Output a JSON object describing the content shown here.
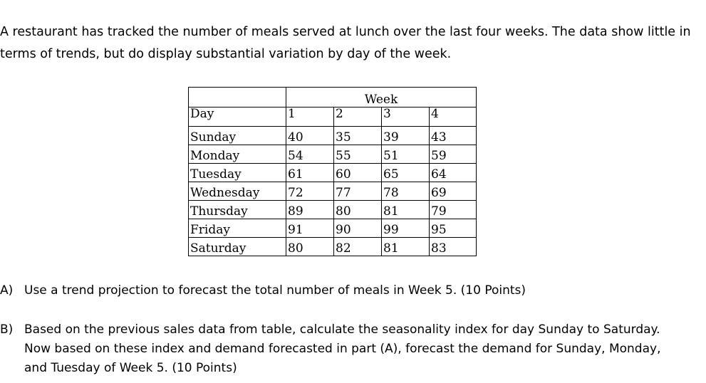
{
  "intro": "A restaurant has tracked the number of meals served at lunch over the last four weeks. The data show little in terms of trends, but do display substantial variation by day of the week.",
  "table": {
    "week_header": "Week",
    "day_header": "Day",
    "week_numbers": [
      "1",
      "2",
      "3",
      "4"
    ],
    "rows": [
      {
        "day": "Sunday",
        "values": [
          "40",
          "35",
          "39",
          "43"
        ]
      },
      {
        "day": "Monday",
        "values": [
          "54",
          "55",
          "51",
          "59"
        ]
      },
      {
        "day": "Tuesday",
        "values": [
          "61",
          "60",
          "65",
          "64"
        ]
      },
      {
        "day": "Wednesday",
        "values": [
          "72",
          "77",
          "78",
          "69"
        ]
      },
      {
        "day": "Thursday",
        "values": [
          "89",
          "80",
          "81",
          "79"
        ]
      },
      {
        "day": "Friday",
        "values": [
          "91",
          "90",
          "99",
          "95"
        ]
      },
      {
        "day": "Saturday",
        "values": [
          "80",
          "82",
          "81",
          "83"
        ]
      }
    ]
  },
  "questions": [
    {
      "letter": "A)",
      "text": "Use a trend projection to forecast the total number of meals in Week 5. (10 Points)"
    },
    {
      "letter": "B)",
      "text": "Based on the previous sales data from table, calculate the seasonality index for day Sunday to Saturday. Now based on these index and demand forecasted in part (A), forecast the demand for Sunday, Monday, and Tuesday of Week 5. (10 Points)"
    }
  ]
}
